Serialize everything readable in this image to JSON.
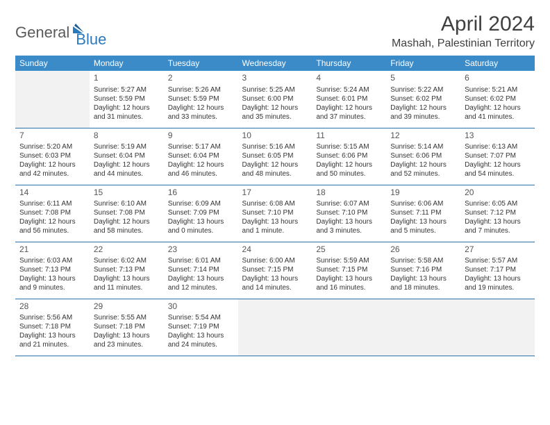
{
  "brand": {
    "general": "General",
    "blue": "Blue"
  },
  "title": "April 2024",
  "location": "Mashah, Palestinian Territory",
  "colors": {
    "header_bg": "#3b8bc9",
    "header_text": "#ffffff",
    "border": "#2b6fa8",
    "empty_bg": "#f2f2f2",
    "logo_gray": "#5a5a5a",
    "logo_blue": "#2b79bd",
    "text": "#333333"
  },
  "weekdays": [
    "Sunday",
    "Monday",
    "Tuesday",
    "Wednesday",
    "Thursday",
    "Friday",
    "Saturday"
  ],
  "weeks": [
    [
      null,
      {
        "d": "1",
        "sr": "Sunrise: 5:27 AM",
        "ss": "Sunset: 5:59 PM",
        "dl1": "Daylight: 12 hours",
        "dl2": "and 31 minutes."
      },
      {
        "d": "2",
        "sr": "Sunrise: 5:26 AM",
        "ss": "Sunset: 5:59 PM",
        "dl1": "Daylight: 12 hours",
        "dl2": "and 33 minutes."
      },
      {
        "d": "3",
        "sr": "Sunrise: 5:25 AM",
        "ss": "Sunset: 6:00 PM",
        "dl1": "Daylight: 12 hours",
        "dl2": "and 35 minutes."
      },
      {
        "d": "4",
        "sr": "Sunrise: 5:24 AM",
        "ss": "Sunset: 6:01 PM",
        "dl1": "Daylight: 12 hours",
        "dl2": "and 37 minutes."
      },
      {
        "d": "5",
        "sr": "Sunrise: 5:22 AM",
        "ss": "Sunset: 6:02 PM",
        "dl1": "Daylight: 12 hours",
        "dl2": "and 39 minutes."
      },
      {
        "d": "6",
        "sr": "Sunrise: 5:21 AM",
        "ss": "Sunset: 6:02 PM",
        "dl1": "Daylight: 12 hours",
        "dl2": "and 41 minutes."
      }
    ],
    [
      {
        "d": "7",
        "sr": "Sunrise: 5:20 AM",
        "ss": "Sunset: 6:03 PM",
        "dl1": "Daylight: 12 hours",
        "dl2": "and 42 minutes."
      },
      {
        "d": "8",
        "sr": "Sunrise: 5:19 AM",
        "ss": "Sunset: 6:04 PM",
        "dl1": "Daylight: 12 hours",
        "dl2": "and 44 minutes."
      },
      {
        "d": "9",
        "sr": "Sunrise: 5:17 AM",
        "ss": "Sunset: 6:04 PM",
        "dl1": "Daylight: 12 hours",
        "dl2": "and 46 minutes."
      },
      {
        "d": "10",
        "sr": "Sunrise: 5:16 AM",
        "ss": "Sunset: 6:05 PM",
        "dl1": "Daylight: 12 hours",
        "dl2": "and 48 minutes."
      },
      {
        "d": "11",
        "sr": "Sunrise: 5:15 AM",
        "ss": "Sunset: 6:06 PM",
        "dl1": "Daylight: 12 hours",
        "dl2": "and 50 minutes."
      },
      {
        "d": "12",
        "sr": "Sunrise: 5:14 AM",
        "ss": "Sunset: 6:06 PM",
        "dl1": "Daylight: 12 hours",
        "dl2": "and 52 minutes."
      },
      {
        "d": "13",
        "sr": "Sunrise: 6:13 AM",
        "ss": "Sunset: 7:07 PM",
        "dl1": "Daylight: 12 hours",
        "dl2": "and 54 minutes."
      }
    ],
    [
      {
        "d": "14",
        "sr": "Sunrise: 6:11 AM",
        "ss": "Sunset: 7:08 PM",
        "dl1": "Daylight: 12 hours",
        "dl2": "and 56 minutes."
      },
      {
        "d": "15",
        "sr": "Sunrise: 6:10 AM",
        "ss": "Sunset: 7:08 PM",
        "dl1": "Daylight: 12 hours",
        "dl2": "and 58 minutes."
      },
      {
        "d": "16",
        "sr": "Sunrise: 6:09 AM",
        "ss": "Sunset: 7:09 PM",
        "dl1": "Daylight: 13 hours",
        "dl2": "and 0 minutes."
      },
      {
        "d": "17",
        "sr": "Sunrise: 6:08 AM",
        "ss": "Sunset: 7:10 PM",
        "dl1": "Daylight: 13 hours",
        "dl2": "and 1 minute."
      },
      {
        "d": "18",
        "sr": "Sunrise: 6:07 AM",
        "ss": "Sunset: 7:10 PM",
        "dl1": "Daylight: 13 hours",
        "dl2": "and 3 minutes."
      },
      {
        "d": "19",
        "sr": "Sunrise: 6:06 AM",
        "ss": "Sunset: 7:11 PM",
        "dl1": "Daylight: 13 hours",
        "dl2": "and 5 minutes."
      },
      {
        "d": "20",
        "sr": "Sunrise: 6:05 AM",
        "ss": "Sunset: 7:12 PM",
        "dl1": "Daylight: 13 hours",
        "dl2": "and 7 minutes."
      }
    ],
    [
      {
        "d": "21",
        "sr": "Sunrise: 6:03 AM",
        "ss": "Sunset: 7:13 PM",
        "dl1": "Daylight: 13 hours",
        "dl2": "and 9 minutes."
      },
      {
        "d": "22",
        "sr": "Sunrise: 6:02 AM",
        "ss": "Sunset: 7:13 PM",
        "dl1": "Daylight: 13 hours",
        "dl2": "and 11 minutes."
      },
      {
        "d": "23",
        "sr": "Sunrise: 6:01 AM",
        "ss": "Sunset: 7:14 PM",
        "dl1": "Daylight: 13 hours",
        "dl2": "and 12 minutes."
      },
      {
        "d": "24",
        "sr": "Sunrise: 6:00 AM",
        "ss": "Sunset: 7:15 PM",
        "dl1": "Daylight: 13 hours",
        "dl2": "and 14 minutes."
      },
      {
        "d": "25",
        "sr": "Sunrise: 5:59 AM",
        "ss": "Sunset: 7:15 PM",
        "dl1": "Daylight: 13 hours",
        "dl2": "and 16 minutes."
      },
      {
        "d": "26",
        "sr": "Sunrise: 5:58 AM",
        "ss": "Sunset: 7:16 PM",
        "dl1": "Daylight: 13 hours",
        "dl2": "and 18 minutes."
      },
      {
        "d": "27",
        "sr": "Sunrise: 5:57 AM",
        "ss": "Sunset: 7:17 PM",
        "dl1": "Daylight: 13 hours",
        "dl2": "and 19 minutes."
      }
    ],
    [
      {
        "d": "28",
        "sr": "Sunrise: 5:56 AM",
        "ss": "Sunset: 7:18 PM",
        "dl1": "Daylight: 13 hours",
        "dl2": "and 21 minutes."
      },
      {
        "d": "29",
        "sr": "Sunrise: 5:55 AM",
        "ss": "Sunset: 7:18 PM",
        "dl1": "Daylight: 13 hours",
        "dl2": "and 23 minutes."
      },
      {
        "d": "30",
        "sr": "Sunrise: 5:54 AM",
        "ss": "Sunset: 7:19 PM",
        "dl1": "Daylight: 13 hours",
        "dl2": "and 24 minutes."
      },
      null,
      null,
      null,
      null
    ]
  ]
}
